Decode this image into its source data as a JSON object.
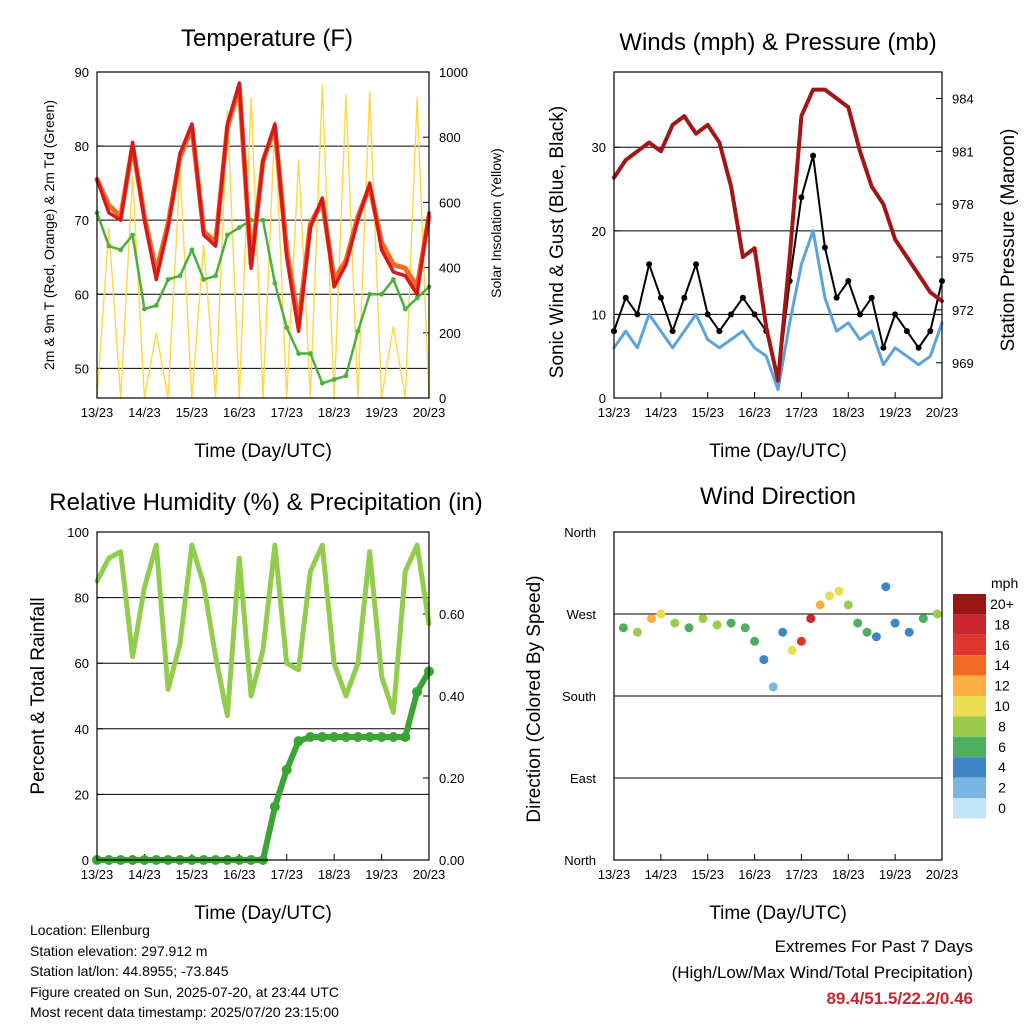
{
  "x_ticks": [
    "13/23",
    "14/23",
    "15/23",
    "16/23",
    "17/23",
    "18/23",
    "19/23",
    "20/23"
  ],
  "info": {
    "location": "Location: Ellenburg",
    "elevation": "Station elevation: 297.912 m",
    "latlon": "Station lat/lon: 44.8955; -73.845",
    "created": "Figure created on Sun, 2025-07-20, at 23:44 UTC",
    "recent": "Most recent data timestamp: 2025/07/20 23:15:00"
  },
  "extremes": {
    "title": "Extremes For Past 7 Days",
    "subtitle": "(High/Low/Max Wind/Total Precipitation)",
    "values": "89.4/51.5/22.2/0.46"
  },
  "colors": {
    "temp_2m": "#d7191c",
    "temp_9m": "#f26a21",
    "dewpoint": "#4daf3c",
    "solar": "#ffd744",
    "wind": "#5ba3dc",
    "gust": "#000000",
    "pressure": "#a21616",
    "rh": "#92cc4c",
    "precip": "#3aa535"
  },
  "chart_data": [
    {
      "type": "line",
      "title": "Temperature (F)",
      "xlabel": "Time (Day/UTC)",
      "ylabel": "2m & 9m T (Red, Orange) & 2m Td (Green)",
      "y2label": "Solar Insolation (Yellow)",
      "ylim": [
        46,
        90
      ],
      "yticks": [
        50,
        60,
        70,
        80,
        90
      ],
      "y2lim": [
        0,
        1000
      ],
      "y2ticks": [
        0,
        200,
        400,
        600,
        800,
        1000
      ],
      "x": [
        0,
        0.25,
        0.5,
        0.75,
        1,
        1.25,
        1.5,
        1.75,
        2,
        2.25,
        2.5,
        2.75,
        3,
        3.25,
        3.5,
        3.75,
        4,
        4.25,
        4.5,
        4.75,
        5,
        5.25,
        5.5,
        5.75,
        6,
        6.25,
        6.5,
        6.75,
        7
      ],
      "series": [
        {
          "name": "2m T",
          "values": [
            75.5,
            71,
            70,
            80.5,
            70,
            62,
            69,
            79,
            83,
            68,
            66.5,
            83,
            88.5,
            63.5,
            78,
            83,
            65,
            55,
            69,
            73,
            61,
            64,
            70,
            75,
            66,
            63,
            62.5,
            60,
            71
          ]
        },
        {
          "name": "9m T",
          "values": [
            75.5,
            72,
            70.5,
            80,
            70.5,
            63,
            69.5,
            78.5,
            82.5,
            68.5,
            67,
            82.5,
            88,
            64,
            78,
            82.5,
            66,
            56,
            69.5,
            72.5,
            62,
            64.5,
            70.5,
            74.5,
            67,
            64,
            63.5,
            61,
            70.5
          ]
        },
        {
          "name": "2m Td",
          "values": [
            71,
            66.5,
            66,
            68,
            58,
            58.5,
            62,
            62.5,
            66,
            62,
            62.5,
            68,
            69,
            70,
            70,
            61.5,
            55.5,
            52,
            52,
            48,
            48.5,
            49,
            55,
            60,
            60,
            62,
            58,
            59.5,
            61
          ]
        },
        {
          "name": "Solar",
          "values": [
            0,
            520,
            0,
            680,
            0,
            200,
            0,
            700,
            0,
            470,
            0,
            880,
            0,
            920,
            0,
            850,
            0,
            730,
            0,
            960,
            0,
            930,
            0,
            940,
            0,
            220,
            0,
            920,
            0
          ]
        }
      ]
    },
    {
      "type": "line",
      "title": "Winds (mph) & Pressure (mb)",
      "xlabel": "Time (Day/UTC)",
      "ylabel": "Sonic Wind & Gust (Blue, Black)",
      "y2label": "Station Pressure (Maroon)",
      "ylim": [
        0,
        39
      ],
      "yticks": [
        0,
        10,
        20,
        30
      ],
      "y2lim": [
        967,
        985.5
      ],
      "y2ticks": [
        969,
        972,
        975,
        978,
        981,
        984
      ],
      "x": [
        0,
        0.25,
        0.5,
        0.75,
        1,
        1.25,
        1.5,
        1.75,
        2,
        2.25,
        2.5,
        2.75,
        3,
        3.25,
        3.5,
        3.75,
        4,
        4.25,
        4.5,
        4.75,
        5,
        5.25,
        5.5,
        5.75,
        6,
        6.25,
        6.5,
        6.75,
        7
      ],
      "series": [
        {
          "name": "Gust",
          "values": [
            8,
            12,
            10,
            16,
            12,
            8,
            12,
            16,
            10,
            8,
            10,
            12,
            10,
            8,
            2,
            14,
            24,
            29,
            18,
            12,
            14,
            10,
            12,
            6,
            10,
            8,
            6,
            8,
            14
          ]
        },
        {
          "name": "Wind",
          "values": [
            6,
            8,
            6,
            10,
            8,
            6,
            8,
            10,
            7,
            6,
            7,
            8,
            6,
            5,
            1,
            9,
            16,
            20,
            12,
            8,
            9,
            7,
            8,
            4,
            6,
            5,
            4,
            5,
            9
          ]
        },
        {
          "name": "Pressure",
          "values": [
            979.5,
            980.5,
            981,
            981.5,
            981,
            982.5,
            983,
            982,
            982.5,
            981.5,
            979,
            975,
            975.5,
            971,
            968,
            975,
            983,
            984.5,
            984.5,
            984,
            983.5,
            981,
            979,
            978,
            976,
            975,
            974,
            973,
            972.5
          ]
        }
      ]
    },
    {
      "type": "line",
      "title": "Relative Humidity (%) & Precipitation (in)",
      "xlabel": "Time (Day/UTC)",
      "ylabel": "Percent & Total Rainfall",
      "ylim": [
        0,
        100
      ],
      "yticks": [
        0,
        20,
        40,
        60,
        80,
        100
      ],
      "y2lim": [
        0,
        0.8
      ],
      "y2ticks": [
        0.0,
        0.2,
        0.4,
        0.6
      ],
      "y2ticklabels": [
        "0.00",
        "0.20",
        "0.40",
        "0.60"
      ],
      "x": [
        0,
        0.25,
        0.5,
        0.75,
        1,
        1.25,
        1.5,
        1.75,
        2,
        2.25,
        2.5,
        2.75,
        3,
        3.25,
        3.5,
        3.75,
        4,
        4.25,
        4.5,
        4.75,
        5,
        5.25,
        5.5,
        5.75,
        6,
        6.25,
        6.5,
        6.75,
        7
      ],
      "series": [
        {
          "name": "RH",
          "values": [
            85,
            92,
            94,
            62,
            83,
            96,
            52,
            66,
            96,
            84,
            62,
            44,
            92,
            50,
            64,
            96,
            60,
            58,
            88,
            96,
            60,
            50,
            60,
            94,
            56,
            45,
            88,
            96,
            72
          ]
        },
        {
          "name": "Precip",
          "values": [
            0,
            0,
            0,
            0,
            0,
            0,
            0,
            0,
            0,
            0,
            0,
            0,
            0,
            0,
            0,
            0.13,
            0.22,
            0.29,
            0.3,
            0.3,
            0.3,
            0.3,
            0.3,
            0.3,
            0.3,
            0.3,
            0.3,
            0.41,
            0.46
          ]
        }
      ]
    },
    {
      "type": "scatter",
      "title": "Wind Direction",
      "xlabel": "Time (Day/UTC)",
      "ylabel": "Direction (Colored By Speed)",
      "yticklabels": [
        "North",
        "East",
        "South",
        "West",
        "North"
      ],
      "ylim": [
        0,
        360
      ],
      "legend_title": "mph",
      "legend": [
        "20+",
        "18",
        "16",
        "14",
        "12",
        "10",
        "8",
        "6",
        "4",
        "2",
        "0"
      ],
      "legend_colors": [
        "#9a1616",
        "#c8282d",
        "#e0352f",
        "#f26a21",
        "#fbae42",
        "#eadd52",
        "#9acb4b",
        "#4daf5f",
        "#3c86c6",
        "#7ab6e4",
        "#c3e3f6"
      ],
      "x": [
        0.2,
        0.5,
        0.8,
        1.0,
        1.3,
        1.6,
        1.9,
        2.2,
        2.5,
        2.8,
        3.0,
        3.2,
        3.4,
        3.6,
        3.8,
        4.0,
        4.2,
        4.4,
        4.6,
        4.8,
        5.0,
        5.2,
        5.4,
        5.6,
        5.8,
        6.0,
        6.3,
        6.6,
        6.9
      ],
      "series": [
        {
          "name": "Direction",
          "values": [
            255,
            250,
            265,
            270,
            260,
            255,
            265,
            258,
            260,
            255,
            240,
            220,
            190,
            250,
            230,
            240,
            265,
            280,
            290,
            295,
            280,
            260,
            250,
            245,
            300,
            260,
            250,
            265,
            270
          ]
        },
        {
          "name": "Speed",
          "values": [
            6,
            8,
            12,
            10,
            8,
            6,
            8,
            7,
            6,
            5,
            5,
            4,
            2,
            4,
            10,
            16,
            18,
            12,
            10,
            10,
            8,
            6,
            6,
            4,
            3,
            4,
            4,
            5,
            7
          ]
        }
      ]
    }
  ]
}
